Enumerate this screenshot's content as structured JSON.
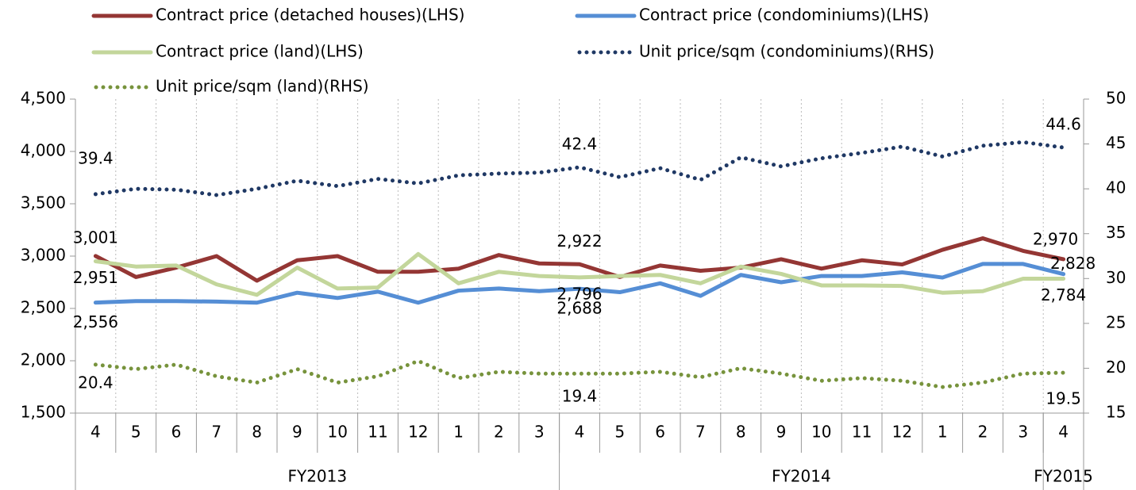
{
  "chart_data": {
    "type": "line",
    "categories": [
      "4",
      "5",
      "6",
      "7",
      "8",
      "9",
      "10",
      "11",
      "12",
      "1",
      "2",
      "3",
      "4",
      "5",
      "6",
      "7",
      "8",
      "9",
      "10",
      "11",
      "12",
      "1",
      "2",
      "3",
      "4"
    ],
    "category_groups": [
      {
        "name": "FY2013",
        "span": 12
      },
      {
        "name": "FY2014",
        "span": 12
      },
      {
        "name": "FY2015",
        "span": 1
      }
    ],
    "ylim": [
      1500,
      4500
    ],
    "yticks": [
      {
        "value": 1500,
        "label": "1,500"
      },
      {
        "value": 2000,
        "label": "2,000"
      },
      {
        "value": 2500,
        "label": "2,500"
      },
      {
        "value": 3000,
        "label": "3,000"
      },
      {
        "value": 3500,
        "label": "3,500"
      },
      {
        "value": 4000,
        "label": "4,000"
      },
      {
        "value": 4500,
        "label": "4,500"
      }
    ],
    "y2lim": [
      15,
      50
    ],
    "y2ticks": [
      15,
      20,
      25,
      30,
      35,
      40,
      45,
      50
    ],
    "legend": "top",
    "series": [
      {
        "name": "Contract price (detached houses)(LHS)",
        "color": "#943634",
        "style": "solid",
        "values": [
          3001,
          2800,
          2890,
          3000,
          2765,
          2960,
          3000,
          2850,
          2850,
          2880,
          3010,
          2930,
          2922,
          2800,
          2910,
          2860,
          2890,
          2970,
          2880,
          2960,
          2920,
          3060,
          3170,
          3050,
          2970
        ],
        "value_labels": [
          "3,001",
          null,
          null,
          null,
          null,
          null,
          null,
          null,
          null,
          null,
          null,
          null,
          "2,922",
          null,
          null,
          null,
          null,
          null,
          null,
          null,
          null,
          null,
          null,
          null,
          "2,970"
        ]
      },
      {
        "name": "Contract price (condominiums)(LHS)",
        "color": "#558ed5",
        "style": "solid",
        "values": [
          2556,
          2570,
          2570,
          2565,
          2555,
          2650,
          2600,
          2660,
          2555,
          2670,
          2690,
          2665,
          2688,
          2655,
          2740,
          2620,
          2820,
          2750,
          2810,
          2810,
          2845,
          2795,
          2925,
          2925,
          2828
        ],
        "value_labels": [
          "2,556",
          null,
          null,
          null,
          null,
          null,
          null,
          null,
          null,
          null,
          null,
          null,
          "2,688",
          null,
          null,
          null,
          null,
          null,
          null,
          null,
          null,
          null,
          null,
          null,
          "2,828"
        ]
      },
      {
        "name": "Contract price (land)(LHS)",
        "color": "#c3d69b",
        "style": "solid",
        "values": [
          2951,
          2900,
          2910,
          2730,
          2630,
          2890,
          2690,
          2700,
          3020,
          2740,
          2850,
          2810,
          2796,
          2810,
          2820,
          2740,
          2900,
          2830,
          2720,
          2720,
          2715,
          2650,
          2665,
          2784,
          2784
        ],
        "value_labels": [
          "2,951",
          null,
          null,
          null,
          null,
          null,
          null,
          null,
          null,
          null,
          null,
          null,
          "2,796",
          null,
          null,
          null,
          null,
          null,
          null,
          null,
          null,
          null,
          null,
          null,
          "2,784"
        ]
      },
      {
        "name": "Unit price/sqm (condominiums)(RHS)",
        "color": "#1f3864",
        "style": "dotted",
        "axis": "y2",
        "values": [
          39.4,
          40.0,
          39.9,
          39.3,
          40.0,
          40.9,
          40.3,
          41.1,
          40.6,
          41.5,
          41.7,
          41.8,
          42.4,
          41.3,
          42.3,
          41.0,
          43.5,
          42.5,
          43.4,
          44.0,
          44.7,
          43.6,
          44.8,
          45.2,
          44.6
        ]
      },
      {
        "name": "Unit price/sqm (land)(RHS)",
        "color": "#77933c",
        "style": "dotted",
        "axis": "y2",
        "values": [
          20.4,
          19.9,
          20.4,
          19.1,
          18.4,
          19.9,
          18.4,
          19.1,
          20.8,
          18.9,
          19.6,
          19.4,
          19.4,
          19.4,
          19.6,
          19.0,
          20.0,
          19.4,
          18.6,
          18.9,
          18.6,
          17.9,
          18.4,
          19.4,
          19.5
        ]
      }
    ]
  }
}
